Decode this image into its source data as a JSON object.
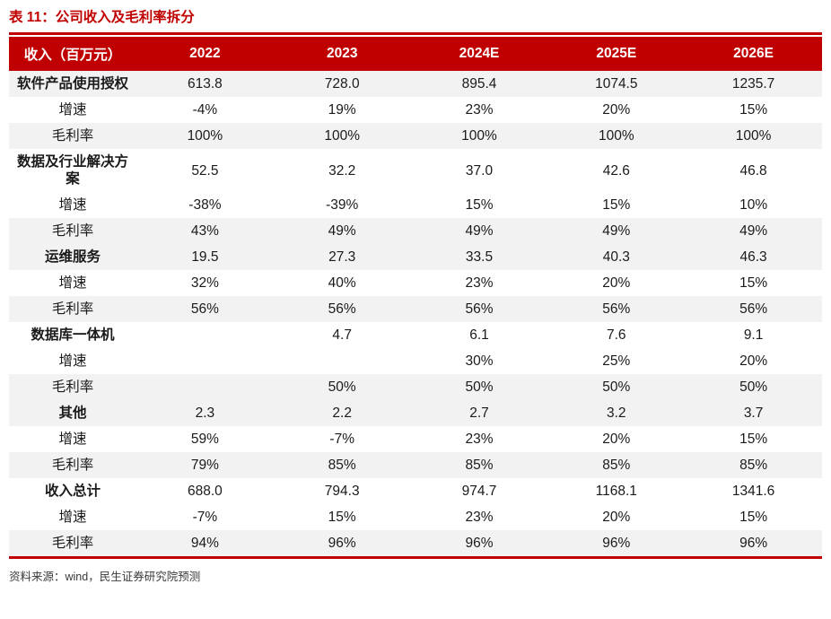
{
  "title": "表 11：公司收入及毛利率拆分",
  "colors": {
    "accent": "#C00000",
    "header_text": "#FFFFFF",
    "row_band": "#F2F2F2",
    "body_text": "#1A1A1A",
    "source_text": "#3A3A3A"
  },
  "chart_data": {
    "type": "table",
    "title": "表 11：公司收入及毛利率拆分",
    "columns": [
      "收入（百万元）",
      "2022",
      "2023",
      "2024E",
      "2025E",
      "2026E"
    ],
    "rows": [
      {
        "label": "软件产品使用授权",
        "bold": true,
        "shaded": true,
        "values": [
          "613.8",
          "728.0",
          "895.4",
          "1074.5",
          "1235.7"
        ]
      },
      {
        "label": "增速",
        "bold": false,
        "shaded": false,
        "values": [
          "-4%",
          "19%",
          "23%",
          "20%",
          "15%"
        ]
      },
      {
        "label": "毛利率",
        "bold": false,
        "shaded": true,
        "values": [
          "100%",
          "100%",
          "100%",
          "100%",
          "100%"
        ]
      },
      {
        "label": "数据及行业解决方案",
        "bold": true,
        "shaded": false,
        "values": [
          "52.5",
          "32.2",
          "37.0",
          "42.6",
          "46.8"
        ]
      },
      {
        "label": "增速",
        "bold": false,
        "shaded": false,
        "values": [
          "-38%",
          "-39%",
          "15%",
          "15%",
          "10%"
        ]
      },
      {
        "label": "毛利率",
        "bold": false,
        "shaded": true,
        "values": [
          "43%",
          "49%",
          "49%",
          "49%",
          "49%"
        ]
      },
      {
        "label": "运维服务",
        "bold": true,
        "shaded": true,
        "values": [
          "19.5",
          "27.3",
          "33.5",
          "40.3",
          "46.3"
        ]
      },
      {
        "label": "增速",
        "bold": false,
        "shaded": false,
        "values": [
          "32%",
          "40%",
          "23%",
          "20%",
          "15%"
        ]
      },
      {
        "label": "毛利率",
        "bold": false,
        "shaded": true,
        "values": [
          "56%",
          "56%",
          "56%",
          "56%",
          "56%"
        ]
      },
      {
        "label": "数据库一体机",
        "bold": true,
        "shaded": false,
        "values": [
          "",
          "4.7",
          "6.1",
          "7.6",
          "9.1"
        ]
      },
      {
        "label": "增速",
        "bold": false,
        "shaded": false,
        "values": [
          "",
          "",
          "30%",
          "25%",
          "20%"
        ]
      },
      {
        "label": "毛利率",
        "bold": false,
        "shaded": true,
        "values": [
          "",
          "50%",
          "50%",
          "50%",
          "50%"
        ]
      },
      {
        "label": "其他",
        "bold": true,
        "shaded": true,
        "values": [
          "2.3",
          "2.2",
          "2.7",
          "3.2",
          "3.7"
        ]
      },
      {
        "label": "增速",
        "bold": false,
        "shaded": false,
        "values": [
          "59%",
          "-7%",
          "23%",
          "20%",
          "15%"
        ]
      },
      {
        "label": "毛利率",
        "bold": false,
        "shaded": true,
        "values": [
          "79%",
          "85%",
          "85%",
          "85%",
          "85%"
        ]
      },
      {
        "label": "收入总计",
        "bold": true,
        "shaded": false,
        "values": [
          "688.0",
          "794.3",
          "974.7",
          "1168.1",
          "1341.6"
        ]
      },
      {
        "label": "增速",
        "bold": false,
        "shaded": false,
        "values": [
          "-7%",
          "15%",
          "23%",
          "20%",
          "15%"
        ]
      },
      {
        "label": "毛利率",
        "bold": false,
        "shaded": true,
        "values": [
          "94%",
          "96%",
          "96%",
          "96%",
          "96%"
        ]
      }
    ]
  },
  "source": "资料来源：wind，民生证券研究院预测"
}
